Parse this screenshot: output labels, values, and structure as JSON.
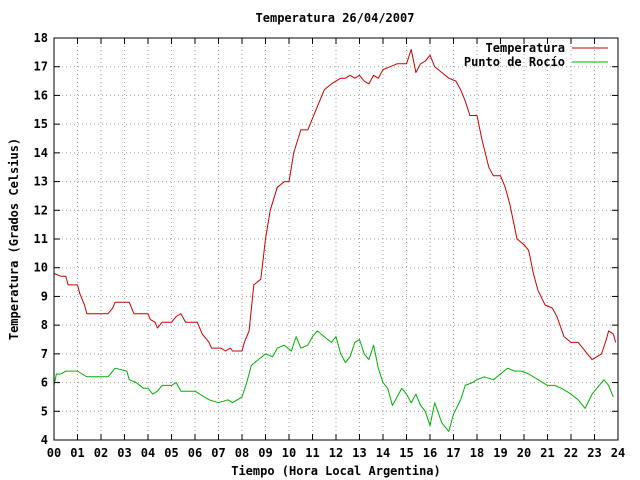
{
  "chart_data": {
    "type": "line",
    "title": "Temperatura 26/04/2007",
    "xlabel": "Tiempo (Hora Local Argentina)",
    "ylabel": "Temperatura (Grados Celsius)",
    "xlim": [
      0,
      24
    ],
    "ylim": [
      4,
      18
    ],
    "x_ticks": [
      "00",
      "01",
      "02",
      "03",
      "04",
      "05",
      "06",
      "07",
      "08",
      "09",
      "10",
      "11",
      "12",
      "13",
      "14",
      "15",
      "16",
      "17",
      "18",
      "19",
      "20",
      "21",
      "22",
      "23",
      "24"
    ],
    "y_ticks": [
      "4",
      "5",
      "6",
      "7",
      "8",
      "9",
      "10",
      "11",
      "12",
      "13",
      "14",
      "15",
      "16",
      "17",
      "18"
    ],
    "grid": true,
    "legend_position": "top-right",
    "series": [
      {
        "name": "Temperatura",
        "color": "#cc0000",
        "points": [
          [
            0,
            9.8
          ],
          [
            0.3,
            9.7
          ],
          [
            0.5,
            9.7
          ],
          [
            0.6,
            9.4
          ],
          [
            1.0,
            9.4
          ],
          [
            1.1,
            9.1
          ],
          [
            1.3,
            8.7
          ],
          [
            1.4,
            8.4
          ],
          [
            2.3,
            8.4
          ],
          [
            2.5,
            8.6
          ],
          [
            2.6,
            8.8
          ],
          [
            3.2,
            8.8
          ],
          [
            3.3,
            8.6
          ],
          [
            3.4,
            8.4
          ],
          [
            4.0,
            8.4
          ],
          [
            4.1,
            8.2
          ],
          [
            4.3,
            8.1
          ],
          [
            4.4,
            7.9
          ],
          [
            4.6,
            8.1
          ],
          [
            5.0,
            8.1
          ],
          [
            5.2,
            8.3
          ],
          [
            5.4,
            8.4
          ],
          [
            5.6,
            8.1
          ],
          [
            6.1,
            8.1
          ],
          [
            6.3,
            7.7
          ],
          [
            6.6,
            7.4
          ],
          [
            6.7,
            7.2
          ],
          [
            7.1,
            7.2
          ],
          [
            7.3,
            7.1
          ],
          [
            7.5,
            7.2
          ],
          [
            7.6,
            7.1
          ],
          [
            8.0,
            7.1
          ],
          [
            8.1,
            7.4
          ],
          [
            8.3,
            7.8
          ],
          [
            8.5,
            9.4
          ],
          [
            8.8,
            9.6
          ],
          [
            9.0,
            11.0
          ],
          [
            9.2,
            12.0
          ],
          [
            9.5,
            12.8
          ],
          [
            9.8,
            13.0
          ],
          [
            10.0,
            13.0
          ],
          [
            10.2,
            14.0
          ],
          [
            10.5,
            14.8
          ],
          [
            10.8,
            14.8
          ],
          [
            11.0,
            15.2
          ],
          [
            11.2,
            15.6
          ],
          [
            11.3,
            15.8
          ],
          [
            11.5,
            16.2
          ],
          [
            11.8,
            16.4
          ],
          [
            12.0,
            16.5
          ],
          [
            12.2,
            16.6
          ],
          [
            12.4,
            16.6
          ],
          [
            12.6,
            16.7
          ],
          [
            12.8,
            16.6
          ],
          [
            13.0,
            16.7
          ],
          [
            13.2,
            16.5
          ],
          [
            13.4,
            16.4
          ],
          [
            13.6,
            16.7
          ],
          [
            13.8,
            16.6
          ],
          [
            14.0,
            16.9
          ],
          [
            14.3,
            17.0
          ],
          [
            14.6,
            17.1
          ],
          [
            15.0,
            17.1
          ],
          [
            15.2,
            17.6
          ],
          [
            15.4,
            16.8
          ],
          [
            15.6,
            17.1
          ],
          [
            15.8,
            17.2
          ],
          [
            16.0,
            17.4
          ],
          [
            16.2,
            17.0
          ],
          [
            16.5,
            16.8
          ],
          [
            16.8,
            16.6
          ],
          [
            17.1,
            16.5
          ],
          [
            17.3,
            16.2
          ],
          [
            17.5,
            15.8
          ],
          [
            17.7,
            15.3
          ],
          [
            18.0,
            15.3
          ],
          [
            18.2,
            14.5
          ],
          [
            18.5,
            13.5
          ],
          [
            18.7,
            13.2
          ],
          [
            19.0,
            13.2
          ],
          [
            19.2,
            12.8
          ],
          [
            19.4,
            12.2
          ],
          [
            19.7,
            11.0
          ],
          [
            20.0,
            10.8
          ],
          [
            20.2,
            10.6
          ],
          [
            20.4,
            9.8
          ],
          [
            20.6,
            9.2
          ],
          [
            20.9,
            8.7
          ],
          [
            21.2,
            8.6
          ],
          [
            21.4,
            8.3
          ],
          [
            21.7,
            7.6
          ],
          [
            22.0,
            7.4
          ],
          [
            22.3,
            7.4
          ],
          [
            22.5,
            7.2
          ],
          [
            22.7,
            7.0
          ],
          [
            22.9,
            6.8
          ],
          [
            23.1,
            6.9
          ],
          [
            23.3,
            7.0
          ],
          [
            23.5,
            7.5
          ],
          [
            23.6,
            7.8
          ],
          [
            23.8,
            7.7
          ],
          [
            23.9,
            7.4
          ]
        ]
      },
      {
        "name": "Punto de Rocío",
        "color": "#00b000",
        "points": [
          [
            0,
            5.9
          ],
          [
            0.1,
            6.3
          ],
          [
            0.3,
            6.3
          ],
          [
            0.5,
            6.4
          ],
          [
            1.0,
            6.4
          ],
          [
            1.2,
            6.3
          ],
          [
            1.4,
            6.2
          ],
          [
            2.3,
            6.2
          ],
          [
            2.5,
            6.4
          ],
          [
            2.6,
            6.5
          ],
          [
            3.1,
            6.4
          ],
          [
            3.2,
            6.1
          ],
          [
            3.5,
            6.0
          ],
          [
            3.8,
            5.8
          ],
          [
            4.0,
            5.8
          ],
          [
            4.2,
            5.6
          ],
          [
            4.4,
            5.7
          ],
          [
            4.6,
            5.9
          ],
          [
            5.0,
            5.9
          ],
          [
            5.2,
            6.0
          ],
          [
            5.4,
            5.7
          ],
          [
            6.0,
            5.7
          ],
          [
            6.2,
            5.6
          ],
          [
            6.4,
            5.5
          ],
          [
            6.6,
            5.4
          ],
          [
            7.0,
            5.3
          ],
          [
            7.4,
            5.4
          ],
          [
            7.6,
            5.3
          ],
          [
            8.0,
            5.5
          ],
          [
            8.2,
            6.0
          ],
          [
            8.4,
            6.6
          ],
          [
            8.7,
            6.8
          ],
          [
            9.0,
            7.0
          ],
          [
            9.3,
            6.9
          ],
          [
            9.5,
            7.2
          ],
          [
            9.8,
            7.3
          ],
          [
            10.1,
            7.1
          ],
          [
            10.3,
            7.6
          ],
          [
            10.5,
            7.2
          ],
          [
            10.8,
            7.3
          ],
          [
            11.0,
            7.6
          ],
          [
            11.2,
            7.8
          ],
          [
            11.5,
            7.6
          ],
          [
            11.8,
            7.4
          ],
          [
            12.0,
            7.6
          ],
          [
            12.2,
            7.0
          ],
          [
            12.4,
            6.7
          ],
          [
            12.6,
            6.9
          ],
          [
            12.8,
            7.4
          ],
          [
            13.0,
            7.5
          ],
          [
            13.2,
            7.0
          ],
          [
            13.4,
            6.8
          ],
          [
            13.6,
            7.3
          ],
          [
            13.8,
            6.5
          ],
          [
            14.0,
            6.0
          ],
          [
            14.2,
            5.8
          ],
          [
            14.4,
            5.2
          ],
          [
            14.6,
            5.5
          ],
          [
            14.8,
            5.8
          ],
          [
            15.0,
            5.6
          ],
          [
            15.2,
            5.3
          ],
          [
            15.4,
            5.6
          ],
          [
            15.6,
            5.2
          ],
          [
            15.8,
            5.0
          ],
          [
            16.0,
            4.5
          ],
          [
            16.2,
            5.3
          ],
          [
            16.5,
            4.6
          ],
          [
            16.8,
            4.3
          ],
          [
            17.0,
            4.9
          ],
          [
            17.3,
            5.4
          ],
          [
            17.5,
            5.9
          ],
          [
            17.8,
            6.0
          ],
          [
            18.0,
            6.1
          ],
          [
            18.3,
            6.2
          ],
          [
            18.7,
            6.1
          ],
          [
            19.0,
            6.3
          ],
          [
            19.3,
            6.5
          ],
          [
            19.6,
            6.4
          ],
          [
            19.9,
            6.4
          ],
          [
            20.2,
            6.3
          ],
          [
            20.6,
            6.1
          ],
          [
            21.0,
            5.9
          ],
          [
            21.3,
            5.9
          ],
          [
            21.6,
            5.8
          ],
          [
            22.0,
            5.6
          ],
          [
            22.3,
            5.4
          ],
          [
            22.6,
            5.1
          ],
          [
            22.9,
            5.6
          ],
          [
            23.2,
            5.9
          ],
          [
            23.4,
            6.1
          ],
          [
            23.6,
            5.9
          ],
          [
            23.8,
            5.5
          ]
        ]
      }
    ]
  }
}
